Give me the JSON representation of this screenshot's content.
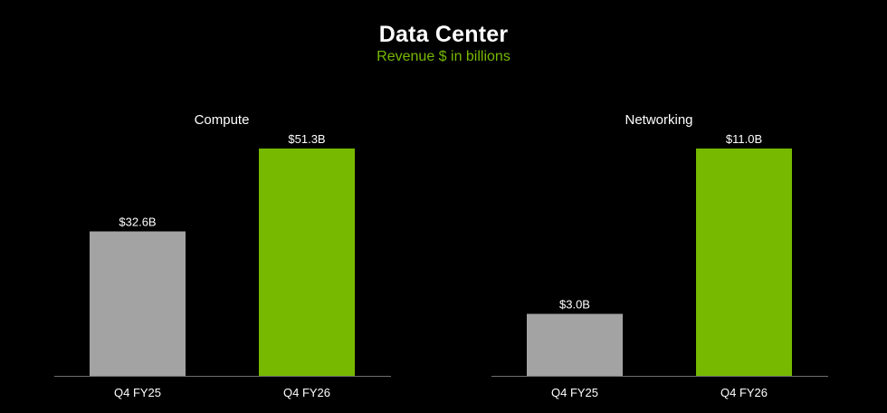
{
  "header": {
    "title": "Data Center",
    "subtitle": "Revenue $ in billions"
  },
  "colors": {
    "background": "#000000",
    "text": "#ffffff",
    "subtitle": "#76b900",
    "prior_year_bar": "#a3a3a3",
    "current_year_bar": "#76b900",
    "axis": "#6e6e6e"
  },
  "chart_data": [
    {
      "type": "bar",
      "title": "Compute",
      "categories": [
        "Q4 FY25",
        "Q4 FY26"
      ],
      "values": [
        32.6,
        51.3
      ],
      "labels": [
        "$32.6B",
        "$51.3B"
      ],
      "ylim": [
        0,
        51.3
      ],
      "grid": false
    },
    {
      "type": "bar",
      "title": "Networking",
      "categories": [
        "Q4 FY25",
        "Q4 FY26"
      ],
      "values": [
        3.0,
        11.0
      ],
      "labels": [
        "$3.0B",
        "$11.0B"
      ],
      "ylim": [
        0,
        11.0
      ],
      "grid": false
    }
  ]
}
